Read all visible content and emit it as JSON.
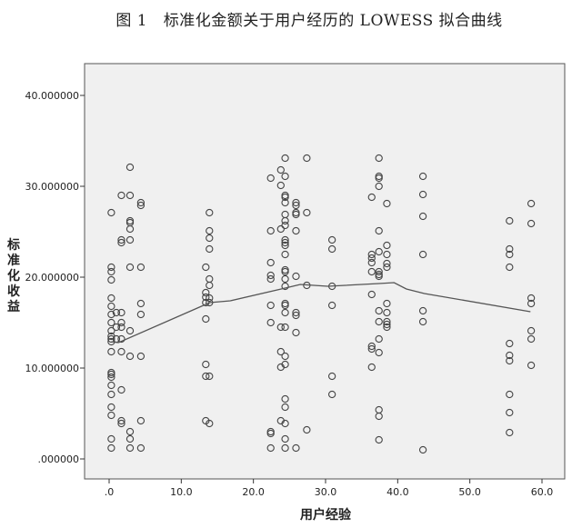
{
  "title": "图 1   标准化金额关于用户经历的 LOWESS 拟合曲线",
  "chart_data": {
    "type": "scatter",
    "title": "图 1   标准化金额关于用户经历的 LOWESS 拟合曲线",
    "xlabel": "用户经验",
    "ylabel": "标准化收益",
    "xlim": [
      -3,
      63
    ],
    "ylim": [
      -2,
      43.5
    ],
    "x_ticks": [
      0,
      10,
      20,
      30,
      40,
      50,
      60
    ],
    "x_tick_labels": [
      ".0",
      "10.0",
      "20.0",
      "30.0",
      "40.0",
      "50.0",
      "60.0"
    ],
    "y_ticks": [
      0,
      10,
      20,
      30,
      40
    ],
    "y_tick_labels": [
      ".000000",
      "10.000000",
      "20.000000",
      "30.000000",
      "40.000000"
    ],
    "grid": false,
    "background": "#f0f0f0",
    "marker_color": "#444444",
    "line_color": "#555555",
    "points": [
      [
        0.3,
        27.1
      ],
      [
        0.3,
        21.1
      ],
      [
        0.3,
        20.6
      ],
      [
        0.3,
        19.7
      ],
      [
        0.3,
        17.7
      ],
      [
        0.3,
        16.8
      ],
      [
        0.3,
        15.9
      ],
      [
        0.3,
        15.0
      ],
      [
        0.3,
        14.1
      ],
      [
        0.3,
        13.5
      ],
      [
        0.3,
        13.2
      ],
      [
        0.3,
        12.9
      ],
      [
        0.3,
        11.8
      ],
      [
        0.3,
        9.5
      ],
      [
        0.3,
        9.3
      ],
      [
        0.3,
        9.0
      ],
      [
        0.3,
        8.1
      ],
      [
        0.3,
        7.1
      ],
      [
        0.3,
        5.7
      ],
      [
        0.3,
        4.8
      ],
      [
        0.3,
        2.2
      ],
      [
        0.3,
        1.2
      ],
      [
        1.0,
        16.1
      ],
      [
        1.0,
        14.5
      ],
      [
        1.0,
        13.2
      ],
      [
        1.7,
        29.0
      ],
      [
        1.7,
        24.1
      ],
      [
        1.7,
        23.8
      ],
      [
        1.7,
        16.1
      ],
      [
        1.7,
        15.0
      ],
      [
        1.7,
        14.5
      ],
      [
        1.7,
        13.2
      ],
      [
        1.7,
        11.8
      ],
      [
        1.7,
        7.6
      ],
      [
        1.7,
        4.2
      ],
      [
        1.7,
        3.9
      ],
      [
        2.9,
        32.1
      ],
      [
        2.9,
        29.0
      ],
      [
        2.9,
        26.2
      ],
      [
        2.9,
        26.0
      ],
      [
        2.9,
        25.3
      ],
      [
        2.9,
        24.1
      ],
      [
        2.9,
        21.1
      ],
      [
        2.9,
        14.1
      ],
      [
        2.9,
        11.3
      ],
      [
        2.9,
        3.0
      ],
      [
        2.9,
        2.2
      ],
      [
        2.9,
        1.2
      ],
      [
        4.4,
        28.2
      ],
      [
        4.4,
        27.9
      ],
      [
        4.4,
        21.1
      ],
      [
        4.4,
        17.1
      ],
      [
        4.4,
        15.9
      ],
      [
        4.4,
        11.3
      ],
      [
        4.4,
        4.2
      ],
      [
        4.4,
        1.2
      ],
      [
        13.4,
        21.1
      ],
      [
        13.4,
        18.3
      ],
      [
        13.4,
        17.8
      ],
      [
        13.4,
        17.2
      ],
      [
        13.4,
        15.4
      ],
      [
        13.4,
        10.4
      ],
      [
        13.4,
        9.1
      ],
      [
        13.4,
        4.2
      ],
      [
        13.9,
        27.1
      ],
      [
        13.9,
        25.1
      ],
      [
        13.9,
        24.3
      ],
      [
        13.9,
        23.1
      ],
      [
        13.9,
        19.8
      ],
      [
        13.9,
        19.1
      ],
      [
        13.9,
        17.7
      ],
      [
        13.9,
        17.2
      ],
      [
        13.9,
        9.1
      ],
      [
        13.9,
        3.9
      ],
      [
        22.4,
        30.9
      ],
      [
        22.4,
        25.1
      ],
      [
        22.4,
        21.6
      ],
      [
        22.4,
        20.2
      ],
      [
        22.4,
        19.8
      ],
      [
        22.4,
        16.9
      ],
      [
        22.4,
        15.0
      ],
      [
        22.4,
        3.0
      ],
      [
        22.4,
        2.8
      ],
      [
        22.4,
        1.2
      ],
      [
        23.8,
        31.8
      ],
      [
        23.8,
        30.1
      ],
      [
        23.8,
        25.3
      ],
      [
        23.8,
        14.5
      ],
      [
        23.8,
        11.8
      ],
      [
        23.8,
        10.1
      ],
      [
        23.8,
        4.2
      ],
      [
        24.4,
        33.1
      ],
      [
        24.4,
        31.1
      ],
      [
        24.4,
        29.0
      ],
      [
        24.4,
        28.8
      ],
      [
        24.4,
        28.2
      ],
      [
        24.4,
        26.9
      ],
      [
        24.4,
        26.2
      ],
      [
        24.4,
        25.7
      ],
      [
        24.4,
        24.1
      ],
      [
        24.4,
        23.8
      ],
      [
        24.4,
        23.5
      ],
      [
        24.4,
        22.5
      ],
      [
        24.4,
        20.8
      ],
      [
        24.4,
        20.6
      ],
      [
        24.4,
        19.8
      ],
      [
        24.4,
        19.0
      ],
      [
        24.4,
        17.1
      ],
      [
        24.4,
        16.9
      ],
      [
        24.4,
        16.1
      ],
      [
        24.4,
        14.5
      ],
      [
        24.4,
        11.3
      ],
      [
        24.4,
        10.4
      ],
      [
        24.4,
        6.6
      ],
      [
        24.4,
        5.7
      ],
      [
        24.4,
        3.9
      ],
      [
        24.4,
        2.2
      ],
      [
        24.4,
        1.2
      ],
      [
        25.9,
        28.2
      ],
      [
        25.9,
        27.9
      ],
      [
        25.9,
        27.1
      ],
      [
        25.9,
        26.9
      ],
      [
        25.9,
        25.1
      ],
      [
        25.9,
        20.1
      ],
      [
        25.9,
        16.1
      ],
      [
        25.9,
        15.8
      ],
      [
        25.9,
        13.9
      ],
      [
        25.9,
        1.2
      ],
      [
        27.4,
        33.1
      ],
      [
        27.4,
        27.1
      ],
      [
        27.4,
        19.1
      ],
      [
        27.4,
        3.2
      ],
      [
        30.9,
        24.1
      ],
      [
        30.9,
        23.1
      ],
      [
        30.9,
        19.0
      ],
      [
        30.9,
        16.9
      ],
      [
        30.9,
        9.1
      ],
      [
        30.9,
        7.1
      ],
      [
        36.4,
        28.8
      ],
      [
        36.4,
        22.5
      ],
      [
        36.4,
        22.1
      ],
      [
        36.4,
        21.6
      ],
      [
        36.4,
        20.6
      ],
      [
        36.4,
        18.1
      ],
      [
        36.4,
        12.4
      ],
      [
        36.4,
        12.1
      ],
      [
        36.4,
        10.1
      ],
      [
        37.4,
        33.1
      ],
      [
        37.4,
        31.1
      ],
      [
        37.4,
        30.9
      ],
      [
        37.4,
        30.0
      ],
      [
        37.4,
        25.1
      ],
      [
        37.4,
        22.8
      ],
      [
        37.4,
        20.6
      ],
      [
        37.4,
        20.3
      ],
      [
        37.4,
        20.1
      ],
      [
        37.4,
        16.3
      ],
      [
        37.4,
        15.1
      ],
      [
        37.4,
        13.2
      ],
      [
        37.4,
        11.7
      ],
      [
        37.4,
        5.4
      ],
      [
        37.4,
        4.7
      ],
      [
        37.4,
        2.1
      ],
      [
        38.5,
        28.1
      ],
      [
        38.5,
        23.5
      ],
      [
        38.5,
        22.5
      ],
      [
        38.5,
        21.5
      ],
      [
        38.5,
        21.1
      ],
      [
        38.5,
        17.1
      ],
      [
        38.5,
        16.1
      ],
      [
        38.5,
        15.1
      ],
      [
        38.5,
        14.8
      ],
      [
        38.5,
        14.5
      ],
      [
        43.5,
        31.1
      ],
      [
        43.5,
        29.1
      ],
      [
        43.5,
        26.7
      ],
      [
        43.5,
        22.5
      ],
      [
        43.5,
        16.3
      ],
      [
        43.5,
        15.1
      ],
      [
        43.5,
        1.0
      ],
      [
        55.5,
        26.2
      ],
      [
        55.5,
        23.1
      ],
      [
        55.5,
        22.5
      ],
      [
        55.5,
        21.1
      ],
      [
        55.5,
        12.7
      ],
      [
        55.5,
        11.4
      ],
      [
        55.5,
        10.8
      ],
      [
        55.5,
        7.1
      ],
      [
        55.5,
        5.1
      ],
      [
        55.5,
        2.9
      ],
      [
        58.5,
        28.1
      ],
      [
        58.5,
        25.9
      ],
      [
        58.5,
        17.7
      ],
      [
        58.5,
        17.1
      ],
      [
        58.5,
        14.1
      ],
      [
        58.5,
        13.2
      ],
      [
        58.5,
        10.3
      ]
    ],
    "lowess_curve": [
      [
        0.3,
        12.9
      ],
      [
        1.3,
        12.8
      ],
      [
        12.8,
        16.8
      ],
      [
        13.9,
        17.2
      ],
      [
        16.8,
        17.4
      ],
      [
        24.4,
        18.8
      ],
      [
        26.5,
        19.2
      ],
      [
        30.3,
        19.0
      ],
      [
        37.4,
        19.3
      ],
      [
        39.5,
        19.4
      ],
      [
        41.2,
        18.7
      ],
      [
        43.7,
        18.2
      ],
      [
        58.4,
        16.2
      ]
    ]
  }
}
